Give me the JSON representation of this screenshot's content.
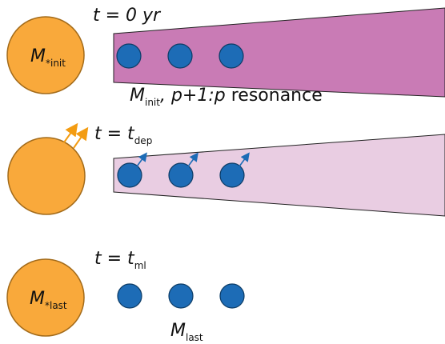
{
  "colors": {
    "star_fill": "#f9a93b",
    "star_stroke": "#a36b1a",
    "planet_fill": "#1d6cb6",
    "planet_stroke": "#0d3c66",
    "disk_dense": "#c97bb5",
    "disk_faint": "#e9cde2",
    "disk_stroke": "#222222",
    "wind_arrow": "#f39c12",
    "planet_arrow": "#1d6cb6"
  },
  "panels": [
    {
      "time": {
        "lhs": "t = ",
        "rhs": "0 yr",
        "sub": ""
      },
      "star_label": {
        "main": "M",
        "sub": "*init"
      },
      "disk": "dense",
      "annotation": {
        "m": "M",
        "m_sub": "init",
        "sep": ", ",
        "ratio": "p+1:p",
        "word": " resonance"
      }
    },
    {
      "time": {
        "lhs": "t = ",
        "rhs": "t",
        "sub": "dep"
      },
      "star_label": {
        "main": "",
        "sub": ""
      },
      "disk": "faint",
      "annotation": null
    },
    {
      "time": {
        "lhs": "t = ",
        "rhs": "t",
        "sub": "ml"
      },
      "star_label": {
        "main": "M",
        "sub": "*last"
      },
      "disk": "none",
      "annotation": {
        "m": "M",
        "m_sub": "last"
      }
    }
  ]
}
